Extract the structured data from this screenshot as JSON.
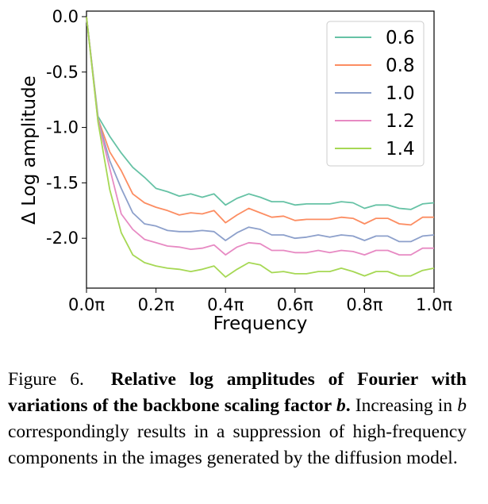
{
  "chart_data": {
    "type": "line",
    "xlabel": "Frequency",
    "ylabel": "Δ Log amplitude",
    "xlim": [
      0.0,
      1.0
    ],
    "ylim": [
      -2.45,
      0.05
    ],
    "x_ticks": [
      {
        "value": 0.0,
        "label": "0.0π"
      },
      {
        "value": 0.2,
        "label": "0.2π"
      },
      {
        "value": 0.4,
        "label": "0.4π"
      },
      {
        "value": 0.6,
        "label": "0.6π"
      },
      {
        "value": 0.8,
        "label": "0.8π"
      },
      {
        "value": 1.0,
        "label": "1.0π"
      }
    ],
    "y_ticks": [
      {
        "value": 0.0,
        "label": "0.0"
      },
      {
        "value": -0.5,
        "label": "-0.5"
      },
      {
        "value": -1.0,
        "label": "-1.0"
      },
      {
        "value": -1.5,
        "label": "-1.5"
      },
      {
        "value": -2.0,
        "label": "-2.0"
      }
    ],
    "grid": false,
    "legend_position": "top-right",
    "x": [
      0.0,
      0.033,
      0.067,
      0.1,
      0.133,
      0.167,
      0.2,
      0.233,
      0.267,
      0.3,
      0.333,
      0.367,
      0.4,
      0.433,
      0.467,
      0.5,
      0.533,
      0.567,
      0.6,
      0.633,
      0.667,
      0.7,
      0.733,
      0.767,
      0.8,
      0.833,
      0.867,
      0.9,
      0.933,
      0.967,
      1.0
    ],
    "series": [
      {
        "name": "0.6",
        "color": "#66c2a5",
        "values": [
          0.0,
          -0.9,
          -1.08,
          -1.23,
          -1.36,
          -1.45,
          -1.55,
          -1.58,
          -1.62,
          -1.6,
          -1.63,
          -1.6,
          -1.7,
          -1.64,
          -1.6,
          -1.63,
          -1.67,
          -1.67,
          -1.7,
          -1.69,
          -1.69,
          -1.69,
          -1.67,
          -1.68,
          -1.73,
          -1.7,
          -1.7,
          -1.73,
          -1.74,
          -1.69,
          -1.68
        ]
      },
      {
        "name": "0.8",
        "color": "#fc8d62",
        "values": [
          0.0,
          -0.92,
          -1.22,
          -1.39,
          -1.6,
          -1.68,
          -1.72,
          -1.75,
          -1.79,
          -1.77,
          -1.78,
          -1.75,
          -1.86,
          -1.79,
          -1.73,
          -1.77,
          -1.81,
          -1.8,
          -1.84,
          -1.83,
          -1.83,
          -1.83,
          -1.81,
          -1.82,
          -1.87,
          -1.82,
          -1.82,
          -1.87,
          -1.88,
          -1.81,
          -1.81
        ]
      },
      {
        "name": "1.0",
        "color": "#8da0cb",
        "values": [
          0.0,
          -0.93,
          -1.3,
          -1.55,
          -1.77,
          -1.87,
          -1.89,
          -1.93,
          -1.94,
          -1.94,
          -1.93,
          -1.94,
          -2.02,
          -1.95,
          -1.9,
          -1.92,
          -1.97,
          -1.97,
          -2.0,
          -1.99,
          -1.97,
          -1.99,
          -1.97,
          -1.98,
          -2.02,
          -1.98,
          -1.98,
          -2.03,
          -2.03,
          -1.98,
          -1.97
        ]
      },
      {
        "name": "1.2",
        "color": "#e78ac3",
        "values": [
          0.0,
          -0.94,
          -1.37,
          -1.78,
          -1.92,
          -2.01,
          -2.04,
          -2.07,
          -2.08,
          -2.1,
          -2.09,
          -2.06,
          -2.15,
          -2.08,
          -2.04,
          -2.05,
          -2.11,
          -2.11,
          -2.13,
          -2.13,
          -2.11,
          -2.13,
          -2.11,
          -2.12,
          -2.15,
          -2.11,
          -2.11,
          -2.15,
          -2.15,
          -2.09,
          -2.09
        ]
      },
      {
        "name": "1.4",
        "color": "#a6d854",
        "values": [
          0.0,
          -0.95,
          -1.56,
          -1.95,
          -2.15,
          -2.22,
          -2.25,
          -2.27,
          -2.28,
          -2.3,
          -2.28,
          -2.25,
          -2.35,
          -2.28,
          -2.22,
          -2.24,
          -2.31,
          -2.3,
          -2.32,
          -2.32,
          -2.3,
          -2.3,
          -2.27,
          -2.3,
          -2.34,
          -2.3,
          -2.3,
          -2.34,
          -2.34,
          -2.29,
          -2.27
        ]
      }
    ]
  },
  "caption": {
    "label": "Figure 6.",
    "bold": "Relative log amplitudes of Fourier with variations of the backbone scaling factor",
    "bold_var": "b",
    "bold_end": ".",
    "text_a": " Increasing in ",
    "var": "b",
    "text_b": " correspondingly results in a suppression of high-frequency components in the images generated by the diffusion model."
  }
}
